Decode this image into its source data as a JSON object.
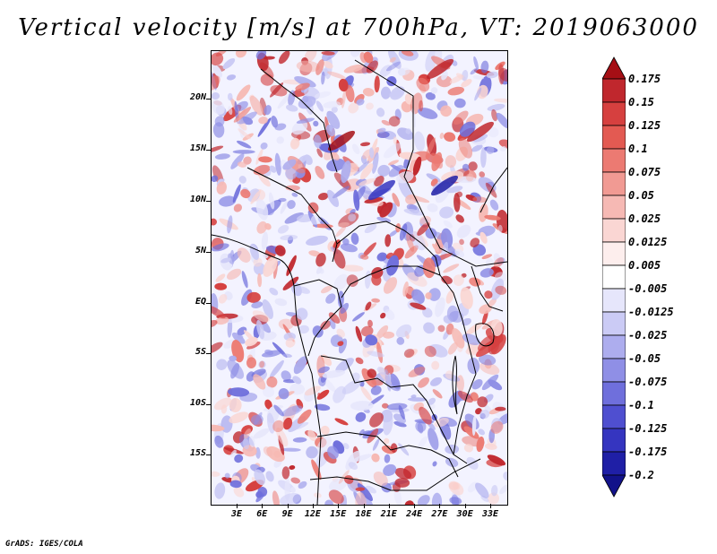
{
  "title": "Vertical velocity [m/s] at 700hPa, VT: 2019063000",
  "credit": "GrADS: IGES/COLA",
  "map": {
    "lat_labels": [
      "20N",
      "15N",
      "10N",
      "5N",
      "EQ",
      "5S",
      "10S",
      "15S"
    ],
    "lon_labels": [
      "3E",
      "6E",
      "9E",
      "12E",
      "15E",
      "18E",
      "21E",
      "24E",
      "27E",
      "30E",
      "33E"
    ],
    "field": "vertical velocity at 700hPa",
    "palette_positive": "#b2182b",
    "palette_negative": "#2c2ca8"
  },
  "colorbar": {
    "labels": [
      "0.175",
      "0.15",
      "0.125",
      "0.1",
      "0.075",
      "0.05",
      "0.025",
      "0.0125",
      "0.005",
      "-0.005",
      "-0.0125",
      "-0.025",
      "-0.05",
      "-0.075",
      "-0.1",
      "-0.125",
      "-0.175",
      "-0.2"
    ],
    "colors": [
      "#a50f15",
      "#c0272d",
      "#d6403f",
      "#e35a52",
      "#ec7a72",
      "#f19a93",
      "#f6b9b4",
      "#fad6d3",
      "#fdeeed",
      "#ffffff",
      "#e6e6fb",
      "#cbcbf5",
      "#adadee",
      "#8f8fe6",
      "#6f6fdc",
      "#4f4fd0",
      "#3535c0",
      "#1f1fa6",
      "#12128a"
    ]
  }
}
